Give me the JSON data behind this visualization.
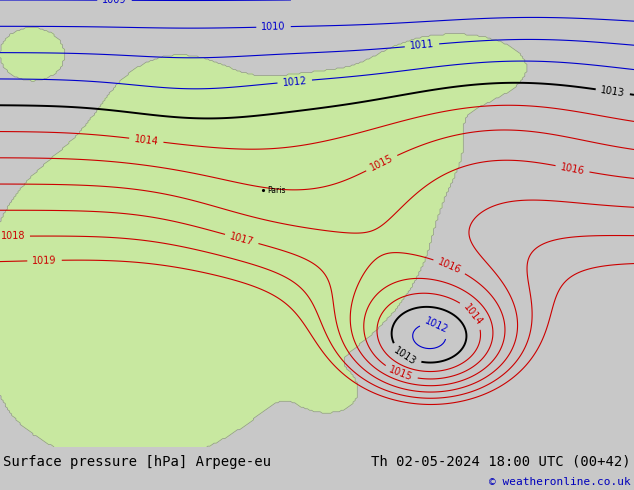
{
  "title_left": "Surface pressure [hPa] Arpege-eu",
  "title_right": "Th 02-05-2024 18:00 UTC (00+42)",
  "copyright": "© weatheronline.co.uk",
  "bg_color": "#c8c8c8",
  "land_color": "#c8e8a0",
  "sea_color": "#c8c8c8",
  "title_bg": "#ffffff",
  "title_fg": "#000000",
  "copyright_fg": "#0000bb",
  "isobar_blue_color": "#0000cc",
  "isobar_black_color": "#000000",
  "isobar_red_color": "#cc0000",
  "font_size_title": 10,
  "font_size_label": 7,
  "font_size_copyright": 8
}
